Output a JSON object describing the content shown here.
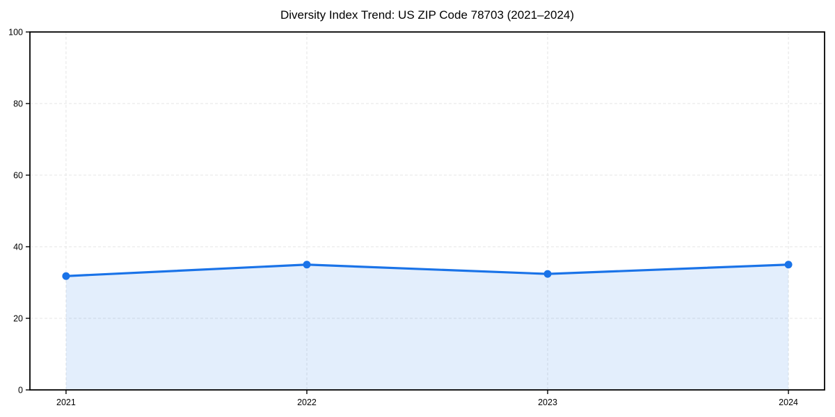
{
  "figure": {
    "title": "Diversity Index Trend: US ZIP Code 78703 (2021–2024)"
  },
  "chart_data": {
    "type": "area",
    "title": "Diversity Index Trend: US ZIP Code 78703 (2021–2024)",
    "x": [
      2021,
      2022,
      2023,
      2024
    ],
    "series": [
      {
        "name": "Diversity Index",
        "values": [
          31.8,
          35.0,
          32.4,
          35.0
        ]
      }
    ],
    "xlabel": "",
    "ylabel": "",
    "xlim": [
      2020.85,
      2024.15
    ],
    "ylim": [
      0,
      100
    ],
    "xticks": [
      "2021",
      "2022",
      "2023",
      "2024"
    ],
    "xtick_values": [
      2021,
      2022,
      2023,
      2024
    ],
    "yticks": [
      "0",
      "20",
      "40",
      "60",
      "80",
      "100"
    ],
    "ytick_values": [
      0,
      20,
      40,
      60,
      80,
      100
    ],
    "grid": true,
    "grid_style": "dashed",
    "legend_position": "none",
    "colors": {
      "line": "#1a73e8",
      "marker": "#1a73e8",
      "fill": "#1a73e8",
      "fill_opacity": 0.12,
      "grid": "#e4e4e4",
      "axis": "#000000",
      "tick_label": "#000000",
      "background": "#ffffff"
    }
  }
}
